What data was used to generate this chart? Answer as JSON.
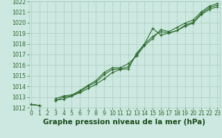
{
  "title": "Graphe pression niveau de la mer (hPa)",
  "xlabel_hours": [
    0,
    1,
    2,
    3,
    4,
    5,
    6,
    7,
    8,
    9,
    10,
    11,
    12,
    13,
    14,
    15,
    16,
    17,
    18,
    19,
    20,
    21,
    22,
    23
  ],
  "line1": [
    1012.3,
    1012.2,
    null,
    1012.7,
    1012.8,
    1013.1,
    1013.4,
    1013.8,
    1014.2,
    1014.7,
    1015.3,
    1015.6,
    1015.65,
    1017.1,
    1018.0,
    1019.45,
    1018.85,
    1019.0,
    1019.25,
    1019.65,
    1019.95,
    1020.75,
    1021.25,
    1021.5
  ],
  "line2": [
    1012.3,
    1012.2,
    null,
    1012.65,
    1013.0,
    1013.1,
    1013.5,
    1014.0,
    1014.4,
    1015.1,
    1015.6,
    1015.65,
    1015.85,
    1016.95,
    1018.0,
    1018.7,
    1019.15,
    1019.05,
    1019.25,
    1019.75,
    1020.05,
    1020.85,
    1021.4,
    1021.65
  ],
  "line3": [
    1012.3,
    1012.2,
    null,
    1012.85,
    1013.1,
    1013.2,
    1013.6,
    1014.1,
    1014.55,
    1015.3,
    1015.75,
    1015.75,
    1016.15,
    1016.85,
    1017.85,
    1018.5,
    1019.35,
    1019.15,
    1019.55,
    1019.95,
    1020.25,
    1021.0,
    1021.55,
    1021.8
  ],
  "ylim_min": 1012,
  "ylim_max": 1022,
  "yticks": [
    1012,
    1013,
    1014,
    1015,
    1016,
    1017,
    1018,
    1019,
    1020,
    1021,
    1022
  ],
  "line_color": "#2d6a2d",
  "bg_color": "#cce8e0",
  "grid_color": "#aaccbf",
  "title_color": "#1a4a1a",
  "title_fontsize": 7.5,
  "tick_fontsize": 5.8
}
